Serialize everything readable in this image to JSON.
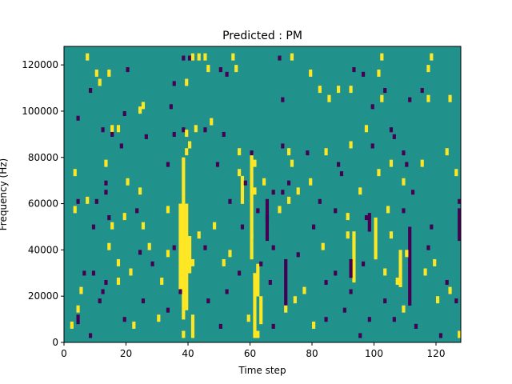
{
  "chart_data": {
    "type": "heatmap",
    "title": "Predicted : PM",
    "xlabel": "Time step",
    "ylabel": "Frequency (Hz)",
    "xlim": [
      0,
      128
    ],
    "ylim": [
      0,
      128000
    ],
    "xticks": [
      0,
      20,
      40,
      60,
      80,
      100,
      120
    ],
    "yticks": [
      0,
      20000,
      40000,
      60000,
      80000,
      100000,
      120000
    ],
    "xtick_labels": [
      "0",
      "20",
      "40",
      "60",
      "80",
      "100",
      "120"
    ],
    "ytick_labels": [
      "0",
      "20000",
      "40000",
      "60000",
      "80000",
      "100000",
      "120000"
    ],
    "grid": false,
    "colorbar": false,
    "levels": [
      -1,
      0,
      1
    ],
    "colormap": "viridis",
    "colors": {
      "-1": "#440154",
      "0": "#21918c",
      "1": "#fde725"
    },
    "background_value": 0,
    "grid_shape": {
      "time_steps": 128,
      "frequency_bins": 128
    },
    "frequency_bin_width": 1000,
    "cells": [
      {
        "t": 38,
        "f": 122,
        "v": -1
      },
      {
        "t": 40,
        "f": 122,
        "v": -1
      },
      {
        "t": 41,
        "f": 122,
        "v": 1
      },
      {
        "t": 43,
        "f": 122,
        "v": 1
      },
      {
        "t": 45,
        "f": 122,
        "v": 1
      },
      {
        "t": 7,
        "f": 122,
        "v": 1
      },
      {
        "t": 54,
        "f": 122,
        "v": 1
      },
      {
        "t": 69,
        "f": 122,
        "v": -1
      },
      {
        "t": 73,
        "f": 122,
        "v": 1
      },
      {
        "t": 102,
        "f": 122,
        "v": 1
      },
      {
        "t": 118,
        "f": 122,
        "v": 1
      },
      {
        "t": 20,
        "f": 117,
        "v": -1
      },
      {
        "t": 46,
        "f": 117,
        "v": 1
      },
      {
        "t": 50,
        "f": 117,
        "v": -1
      },
      {
        "t": 55,
        "f": 117,
        "v": 1
      },
      {
        "t": 93,
        "f": 117,
        "v": -1
      },
      {
        "t": 117,
        "f": 117,
        "v": 1
      },
      {
        "t": 10,
        "f": 115,
        "v": 1
      },
      {
        "t": 14,
        "f": 115,
        "v": 1
      },
      {
        "t": 52,
        "f": 115,
        "v": -1
      },
      {
        "t": 79,
        "f": 115,
        "v": 1
      },
      {
        "t": 96,
        "f": 115,
        "v": -1
      },
      {
        "t": 101,
        "f": 115,
        "v": 1
      },
      {
        "t": 11,
        "f": 111,
        "v": 1
      },
      {
        "t": 35,
        "f": 111,
        "v": -1
      },
      {
        "t": 39,
        "f": 111,
        "v": 1
      },
      {
        "t": 8,
        "f": 108,
        "v": -1
      },
      {
        "t": 82,
        "f": 108,
        "v": 1
      },
      {
        "t": 88,
        "f": 108,
        "v": 1
      },
      {
        "t": 92,
        "f": 108,
        "v": 1
      },
      {
        "t": 103,
        "f": 108,
        "v": -1
      },
      {
        "t": 115,
        "f": 108,
        "v": -1
      },
      {
        "t": 70,
        "f": 104,
        "v": -1
      },
      {
        "t": 85,
        "f": 104,
        "v": 1
      },
      {
        "t": 102,
        "f": 104,
        "v": 1
      },
      {
        "t": 111,
        "f": 104,
        "v": -1
      },
      {
        "t": 117,
        "f": 104,
        "v": 1
      },
      {
        "t": 124,
        "f": 104,
        "v": 1
      },
      {
        "t": 25,
        "f": 101,
        "v": 1
      },
      {
        "t": 34,
        "f": 101,
        "v": -1
      },
      {
        "t": 99,
        "f": 101,
        "v": -1
      },
      {
        "t": 24,
        "f": 99,
        "v": 1
      },
      {
        "t": 19,
        "f": 98,
        "v": -1
      },
      {
        "t": 4,
        "f": 96,
        "v": -1
      },
      {
        "t": 47,
        "f": 94,
        "v": 1
      },
      {
        "t": 12,
        "f": 91,
        "v": -1
      },
      {
        "t": 15,
        "f": 91,
        "v": 1
      },
      {
        "t": 17,
        "f": 91,
        "v": 1
      },
      {
        "t": 38,
        "f": 91,
        "v": -1
      },
      {
        "t": 42,
        "f": 91,
        "v": 1
      },
      {
        "t": 45,
        "f": 91,
        "v": -1
      },
      {
        "t": 97,
        "f": 91,
        "v": 1
      },
      {
        "t": 105,
        "f": 91,
        "v": -1
      },
      {
        "t": 15,
        "f": 89,
        "v": -1
      },
      {
        "t": 35,
        "f": 89,
        "v": -1
      },
      {
        "t": 39,
        "f": 89,
        "v": 1
      },
      {
        "t": 51,
        "f": 89,
        "v": -1
      },
      {
        "t": 26,
        "f": 88,
        "v": -1
      },
      {
        "t": 106,
        "f": 88,
        "v": -1
      },
      {
        "t": 18,
        "f": 84,
        "v": -1
      },
      {
        "t": 40,
        "f": 84,
        "v": 1
      },
      {
        "t": 70,
        "f": 84,
        "v": -1
      },
      {
        "t": 92,
        "f": 84,
        "v": 1
      },
      {
        "t": 99,
        "f": 84,
        "v": -1
      },
      {
        "t": 39,
        "f": 81,
        "v": 1
      },
      {
        "t": 56,
        "f": 81,
        "v": 1
      },
      {
        "t": 60,
        "f": 81,
        "v": -1
      },
      {
        "t": 72,
        "f": 81,
        "v": 1
      },
      {
        "t": 78,
        "f": 81,
        "v": -1
      },
      {
        "t": 84,
        "f": 81,
        "v": 1
      },
      {
        "t": 109,
        "f": 81,
        "v": -1
      },
      {
        "t": 123,
        "f": 81,
        "v": 1
      },
      {
        "t": 13,
        "f": 76,
        "v": 1
      },
      {
        "t": 33,
        "f": 76,
        "v": -1
      },
      {
        "t": 49,
        "f": 76,
        "v": -1
      },
      {
        "t": 61,
        "f": 76,
        "v": 1
      },
      {
        "t": 73,
        "f": 76,
        "v": 1
      },
      {
        "t": 88,
        "f": 76,
        "v": -1
      },
      {
        "t": 105,
        "f": 76,
        "v": 1
      },
      {
        "t": 110,
        "f": 76,
        "v": -1
      },
      {
        "t": 115,
        "f": 76,
        "v": 1
      },
      {
        "t": 3,
        "f": 72,
        "v": 1
      },
      {
        "t": 56,
        "f": 72,
        "v": 1
      },
      {
        "t": 89,
        "f": 72,
        "v": -1
      },
      {
        "t": 101,
        "f": 72,
        "v": 1
      },
      {
        "t": 126,
        "f": 72,
        "v": 1
      },
      {
        "t": 13,
        "f": 68,
        "v": -1
      },
      {
        "t": 20,
        "f": 68,
        "v": 1
      },
      {
        "t": 58,
        "f": 68,
        "v": -1
      },
      {
        "t": 64,
        "f": 68,
        "v": 1
      },
      {
        "t": 72,
        "f": 68,
        "v": -1
      },
      {
        "t": 79,
        "f": 68,
        "v": 1
      },
      {
        "t": 109,
        "f": 68,
        "v": 1
      },
      {
        "t": 13,
        "f": 64,
        "v": -1
      },
      {
        "t": 24,
        "f": 64,
        "v": 1
      },
      {
        "t": 61,
        "f": 64,
        "v": 1
      },
      {
        "t": 67,
        "f": 64,
        "v": -1
      },
      {
        "t": 70,
        "f": 64,
        "v": -1
      },
      {
        "t": 75,
        "f": 64,
        "v": 1
      },
      {
        "t": 95,
        "f": 64,
        "v": 1
      },
      {
        "t": 112,
        "f": 64,
        "v": -1
      },
      {
        "t": 4,
        "f": 60,
        "v": -1
      },
      {
        "t": 7,
        "f": 60,
        "v": 1
      },
      {
        "t": 10,
        "f": 60,
        "v": -1
      },
      {
        "t": 53,
        "f": 60,
        "v": -1
      },
      {
        "t": 72,
        "f": 60,
        "v": 1
      },
      {
        "t": 82,
        "f": 60,
        "v": -1
      },
      {
        "t": 127,
        "f": 60,
        "v": -1
      },
      {
        "t": 3,
        "f": 56,
        "v": 1
      },
      {
        "t": 23,
        "f": 56,
        "v": -1
      },
      {
        "t": 33,
        "f": 56,
        "v": 1
      },
      {
        "t": 62,
        "f": 56,
        "v": -1
      },
      {
        "t": 69,
        "f": 56,
        "v": 1
      },
      {
        "t": 87,
        "f": 56,
        "v": -1
      },
      {
        "t": 104,
        "f": 56,
        "v": 1
      },
      {
        "t": 109,
        "f": 56,
        "v": -1
      },
      {
        "t": 14,
        "f": 53,
        "v": -1
      },
      {
        "t": 19,
        "f": 53,
        "v": 1
      },
      {
        "t": 65,
        "f": 53,
        "v": -1
      },
      {
        "t": 91,
        "f": 53,
        "v": 1
      },
      {
        "t": 97,
        "f": 53,
        "v": -1
      },
      {
        "t": 9,
        "f": 49,
        "v": -1
      },
      {
        "t": 15,
        "f": 49,
        "v": 1
      },
      {
        "t": 25,
        "f": 49,
        "v": 1
      },
      {
        "t": 48,
        "f": 49,
        "v": 1
      },
      {
        "t": 57,
        "f": 49,
        "v": -1
      },
      {
        "t": 80,
        "f": 49,
        "v": -1
      },
      {
        "t": 118,
        "f": 49,
        "v": -1
      },
      {
        "t": 43,
        "f": 45,
        "v": 1
      },
      {
        "t": 60,
        "f": 45,
        "v": 1
      },
      {
        "t": 91,
        "f": 45,
        "v": 1
      },
      {
        "t": 105,
        "f": 45,
        "v": 1
      },
      {
        "t": 14,
        "f": 40,
        "v": 1
      },
      {
        "t": 27,
        "f": 40,
        "v": 1
      },
      {
        "t": 35,
        "f": 40,
        "v": -1
      },
      {
        "t": 45,
        "f": 40,
        "v": -1
      },
      {
        "t": 67,
        "f": 40,
        "v": -1
      },
      {
        "t": 83,
        "f": 40,
        "v": 1
      },
      {
        "t": 117,
        "f": 40,
        "v": -1
      },
      {
        "t": 24,
        "f": 38,
        "v": -1
      },
      {
        "t": 33,
        "f": 37,
        "v": 1
      },
      {
        "t": 53,
        "f": 37,
        "v": 1
      },
      {
        "t": 75,
        "f": 37,
        "v": -1
      },
      {
        "t": 110,
        "f": 37,
        "v": 1
      },
      {
        "t": 17,
        "f": 33,
        "v": 1
      },
      {
        "t": 28,
        "f": 33,
        "v": -1
      },
      {
        "t": 41,
        "f": 33,
        "v": 1
      },
      {
        "t": 51,
        "f": 33,
        "v": 1
      },
      {
        "t": 63,
        "f": 33,
        "v": -1
      },
      {
        "t": 96,
        "f": 33,
        "v": -1
      },
      {
        "t": 119,
        "f": 33,
        "v": 1
      },
      {
        "t": 6,
        "f": 29,
        "v": -1
      },
      {
        "t": 9,
        "f": 29,
        "v": -1
      },
      {
        "t": 21,
        "f": 29,
        "v": 1
      },
      {
        "t": 56,
        "f": 29,
        "v": -1
      },
      {
        "t": 87,
        "f": 29,
        "v": -1
      },
      {
        "t": 103,
        "f": 29,
        "v": 1
      },
      {
        "t": 116,
        "f": 29,
        "v": 1
      },
      {
        "t": 13,
        "f": 25,
        "v": -1
      },
      {
        "t": 17,
        "f": 25,
        "v": 1
      },
      {
        "t": 31,
        "f": 25,
        "v": 1
      },
      {
        "t": 66,
        "f": 25,
        "v": -1
      },
      {
        "t": 84,
        "f": 25,
        "v": -1
      },
      {
        "t": 107,
        "f": 25,
        "v": 1
      },
      {
        "t": 123,
        "f": 25,
        "v": -1
      },
      {
        "t": 5,
        "f": 21,
        "v": 1
      },
      {
        "t": 12,
        "f": 21,
        "v": -1
      },
      {
        "t": 37,
        "f": 21,
        "v": -1
      },
      {
        "t": 52,
        "f": 21,
        "v": -1
      },
      {
        "t": 77,
        "f": 21,
        "v": 1
      },
      {
        "t": 92,
        "f": 21,
        "v": -1
      },
      {
        "t": 124,
        "f": 21,
        "v": 1
      },
      {
        "t": 11,
        "f": 17,
        "v": -1
      },
      {
        "t": 25,
        "f": 17,
        "v": -1
      },
      {
        "t": 46,
        "f": 17,
        "v": -1
      },
      {
        "t": 74,
        "f": 17,
        "v": 1
      },
      {
        "t": 103,
        "f": 17,
        "v": -1
      },
      {
        "t": 120,
        "f": 17,
        "v": 1
      },
      {
        "t": 126,
        "f": 17,
        "v": -1
      },
      {
        "t": 4,
        "f": 13,
        "v": 1
      },
      {
        "t": 33,
        "f": 13,
        "v": -1
      },
      {
        "t": 71,
        "f": 13,
        "v": 1
      },
      {
        "t": 90,
        "f": 13,
        "v": -1
      },
      {
        "t": 109,
        "f": 13,
        "v": 1
      },
      {
        "t": 19,
        "f": 9,
        "v": -1
      },
      {
        "t": 30,
        "f": 9,
        "v": 1
      },
      {
        "t": 59,
        "f": 9,
        "v": 1
      },
      {
        "t": 84,
        "f": 9,
        "v": -1
      },
      {
        "t": 98,
        "f": 9,
        "v": -1
      },
      {
        "t": 106,
        "f": 9,
        "v": -1
      },
      {
        "t": 2,
        "f": 6,
        "v": 1
      },
      {
        "t": 22,
        "f": 6,
        "v": 1
      },
      {
        "t": 50,
        "f": 6,
        "v": -1
      },
      {
        "t": 67,
        "f": 6,
        "v": -1
      },
      {
        "t": 80,
        "f": 6,
        "v": 1
      },
      {
        "t": 113,
        "f": 6,
        "v": -1
      },
      {
        "t": 8,
        "f": 2,
        "v": -1
      },
      {
        "t": 38,
        "f": 2,
        "v": 1
      },
      {
        "t": 62,
        "f": 2,
        "v": 1
      },
      {
        "t": 95,
        "f": 2,
        "v": -1
      },
      {
        "t": 121,
        "f": 2,
        "v": -1
      },
      {
        "t": 127,
        "f": 2,
        "v": 1
      }
    ],
    "bands": [
      {
        "t": 38,
        "f_from": 10,
        "f_to": 80,
        "v": 1
      },
      {
        "t": 39,
        "f_from": 14,
        "f_to": 60,
        "v": 1
      },
      {
        "t": 37,
        "f_from": 22,
        "f_to": 60,
        "v": 1
      },
      {
        "t": 41,
        "f_from": 2,
        "f_to": 12,
        "v": 1
      },
      {
        "t": 40,
        "f_from": 30,
        "f_to": 46,
        "v": 1
      },
      {
        "t": 61,
        "f_from": 2,
        "f_to": 30,
        "v": 1
      },
      {
        "t": 62,
        "f_from": 20,
        "f_to": 34,
        "v": 1
      },
      {
        "t": 63,
        "f_from": 8,
        "f_to": 20,
        "v": 1
      },
      {
        "t": 60,
        "f_from": 36,
        "f_to": 82,
        "v": 1
      },
      {
        "t": 57,
        "f_from": 60,
        "f_to": 72,
        "v": 1
      },
      {
        "t": 93,
        "f_from": 26,
        "f_to": 48,
        "v": 1
      },
      {
        "t": 100,
        "f_from": 36,
        "f_to": 54,
        "v": 1
      },
      {
        "t": 111,
        "f_from": 16,
        "f_to": 50,
        "v": -1
      },
      {
        "t": 127,
        "f_from": 44,
        "f_to": 58,
        "v": -1
      },
      {
        "t": 71,
        "f_from": 16,
        "f_to": 36,
        "v": -1
      },
      {
        "t": 92,
        "f_from": 28,
        "f_to": 36,
        "v": -1
      },
      {
        "t": 98,
        "f_from": 48,
        "f_to": 56,
        "v": -1
      },
      {
        "t": 65,
        "f_from": 44,
        "f_to": 62,
        "v": -1
      },
      {
        "t": 108,
        "f_from": 24,
        "f_to": 40,
        "v": 1
      },
      {
        "t": 4,
        "f_from": 8,
        "f_to": 12,
        "v": -1
      }
    ]
  }
}
